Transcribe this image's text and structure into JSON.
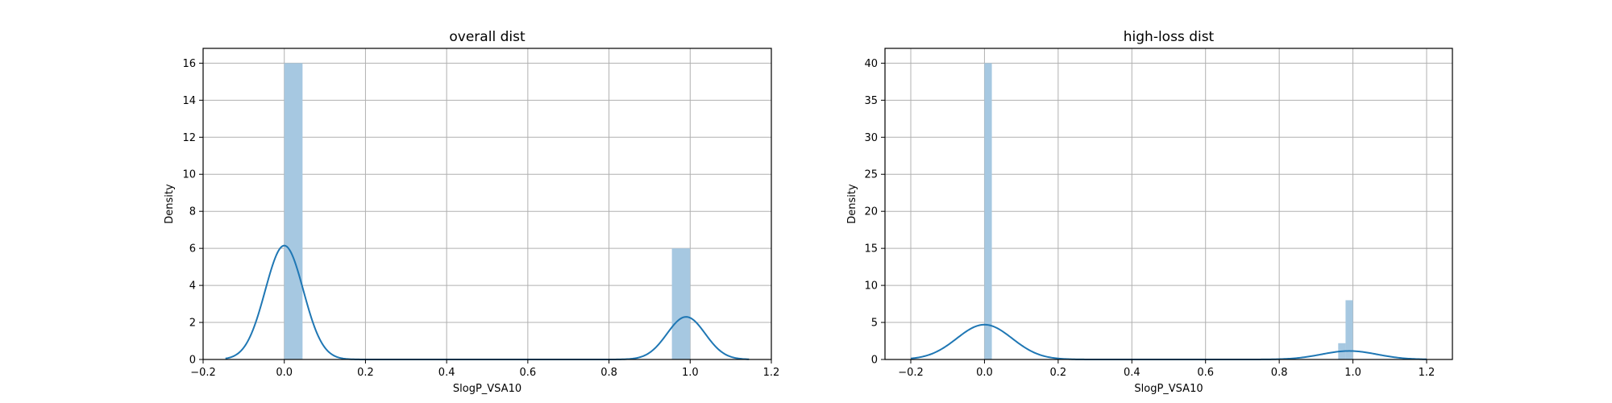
{
  "figure": {
    "background": "#ffffff",
    "bar_color": "#a6c8e1",
    "kde_color": "#1f77b4",
    "grid_color": "#b0b0b0"
  },
  "chart_data": [
    {
      "type": "bar",
      "title": "overall dist",
      "xlabel": "SlogP_VSA10",
      "ylabel": "Density",
      "xlim": [
        -0.2,
        1.2
      ],
      "ylim": [
        0,
        16.8
      ],
      "xticks": [
        -0.2,
        0.0,
        0.2,
        0.4,
        0.6,
        0.8,
        1.0,
        1.2
      ],
      "xtick_labels": [
        "−0.2",
        "0.0",
        "0.2",
        "0.4",
        "0.6",
        "0.8",
        "1.0",
        "1.2"
      ],
      "yticks": [
        0,
        2,
        4,
        6,
        8,
        10,
        12,
        14,
        16
      ],
      "ytick_labels": [
        "0",
        "2",
        "4",
        "6",
        "8",
        "10",
        "12",
        "14",
        "16"
      ],
      "grid": true,
      "histogram": [
        {
          "x0": 0.0,
          "x1": 0.045,
          "density": 16.0
        },
        {
          "x0": 0.955,
          "x1": 1.0,
          "density": 6.0
        }
      ],
      "kde": {
        "x_range": [
          -0.145,
          1.145
        ],
        "components": [
          {
            "mean": 0.0,
            "sd": 0.047,
            "peak": 6.15
          },
          {
            "mean": 0.99,
            "sd": 0.047,
            "peak": 2.3
          }
        ]
      }
    },
    {
      "type": "bar",
      "title": "high-loss dist",
      "xlabel": "SlogP_VSA10",
      "ylabel": "Density",
      "xlim": [
        -0.27,
        1.27
      ],
      "ylim": [
        0,
        42
      ],
      "xticks": [
        -0.2,
        0.0,
        0.2,
        0.4,
        0.6,
        0.8,
        1.0,
        1.2
      ],
      "xtick_labels": [
        "−0.2",
        "0.0",
        "0.2",
        "0.4",
        "0.6",
        "0.8",
        "1.0",
        "1.2"
      ],
      "yticks": [
        0,
        5,
        10,
        15,
        20,
        25,
        30,
        35,
        40
      ],
      "ytick_labels": [
        "0",
        "5",
        "10",
        "15",
        "20",
        "25",
        "30",
        "35",
        "40"
      ],
      "grid": true,
      "histogram": [
        {
          "x0": 0.0,
          "x1": 0.02,
          "density": 40.0
        },
        {
          "x0": 0.96,
          "x1": 0.98,
          "density": 2.2
        },
        {
          "x0": 0.98,
          "x1": 1.0,
          "density": 8.0
        }
      ],
      "kde": {
        "x_range": [
          -0.2,
          1.2
        ],
        "components": [
          {
            "mean": 0.0,
            "sd": 0.075,
            "peak": 4.7
          },
          {
            "mean": 0.99,
            "sd": 0.075,
            "peak": 1.15
          }
        ]
      }
    }
  ]
}
